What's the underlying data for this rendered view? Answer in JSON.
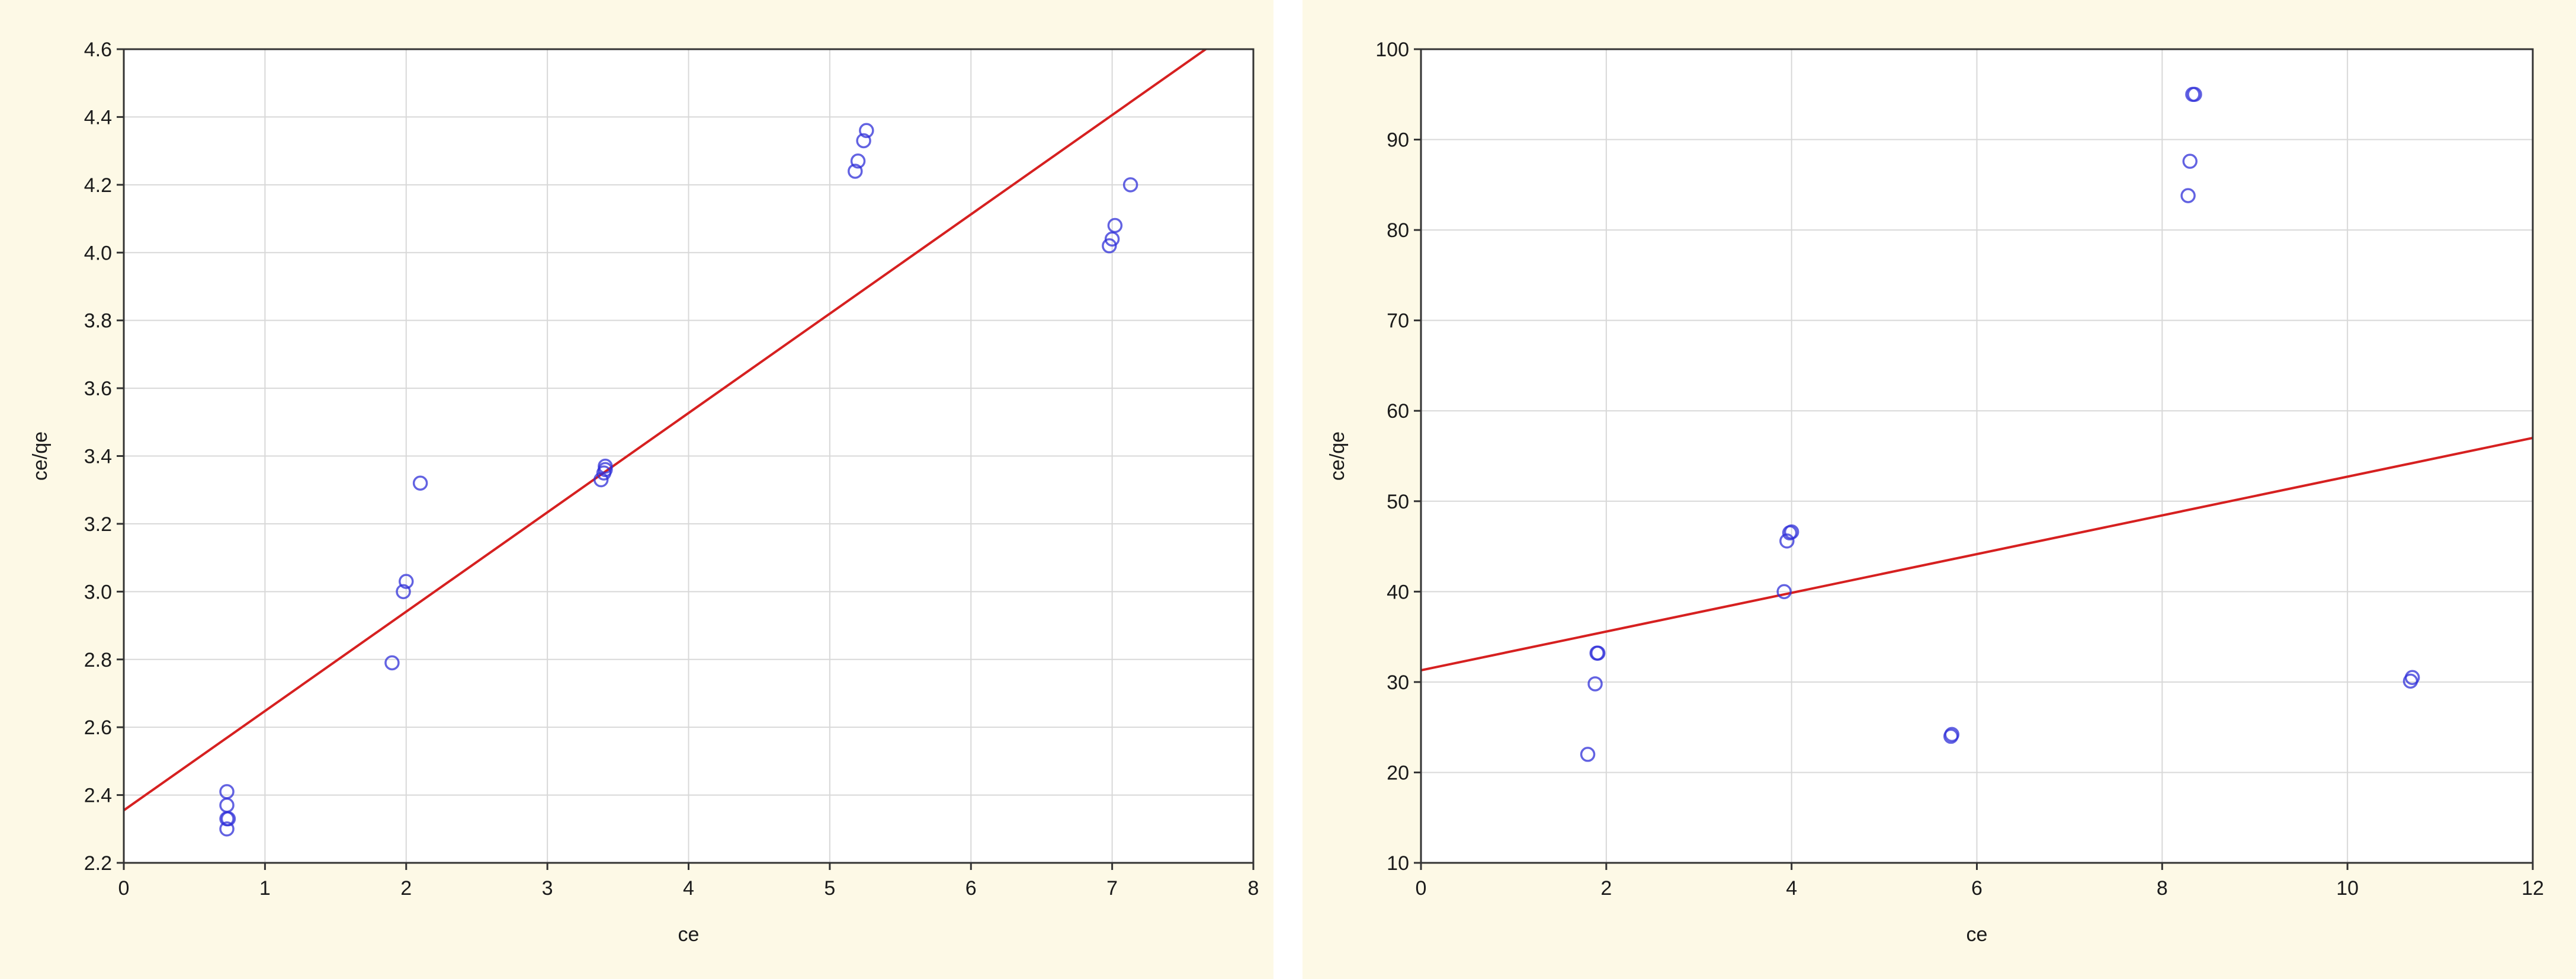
{
  "chart_data": [
    {
      "type": "scatter",
      "title": "",
      "xlabel": "ce",
      "ylabel": "ce/qe",
      "xlim": [
        0,
        8
      ],
      "ylim": [
        2.2,
        4.6
      ],
      "xticks": [
        "0",
        "1",
        "2",
        "3",
        "4",
        "5",
        "6",
        "7",
        "8"
      ],
      "yticks": [
        "2.2",
        "2.4",
        "2.6",
        "2.8",
        "3.0",
        "3.2",
        "3.4",
        "3.6",
        "3.8",
        "4.0",
        "4.2",
        "4.4",
        "4.6"
      ],
      "grid": true,
      "points": [
        [
          0.73,
          2.41
        ],
        [
          0.73,
          2.37
        ],
        [
          0.73,
          2.33
        ],
        [
          0.74,
          2.33
        ],
        [
          0.73,
          2.3
        ],
        [
          1.9,
          2.79
        ],
        [
          2.0,
          3.03
        ],
        [
          1.98,
          3.0
        ],
        [
          2.1,
          3.32
        ],
        [
          3.38,
          3.33
        ],
        [
          3.4,
          3.35
        ],
        [
          3.41,
          3.36
        ],
        [
          3.41,
          3.37
        ],
        [
          5.18,
          4.24
        ],
        [
          5.2,
          4.27
        ],
        [
          5.24,
          4.33
        ],
        [
          5.26,
          4.36
        ],
        [
          6.98,
          4.02
        ],
        [
          7.0,
          4.04
        ],
        [
          7.02,
          4.08
        ],
        [
          7.13,
          4.2
        ]
      ],
      "fit_line": {
        "x": [
          0,
          7.68
        ],
        "y": [
          2.355,
          4.605
        ]
      },
      "colors": {
        "points": "#2f2fd8",
        "line": "#d62020",
        "grid": "#d8d8d8",
        "background": "#fdf9e6"
      }
    },
    {
      "type": "scatter",
      "title": "",
      "xlabel": "ce",
      "ylabel": "ce/qe",
      "xlim": [
        0,
        12
      ],
      "ylim": [
        10,
        100
      ],
      "xticks": [
        "0",
        "2",
        "4",
        "6",
        "8",
        "10",
        "12"
      ],
      "yticks": [
        "10",
        "20",
        "30",
        "40",
        "50",
        "60",
        "70",
        "80",
        "90",
        "100"
      ],
      "grid": true,
      "points": [
        [
          1.8,
          22
        ],
        [
          1.88,
          29.8
        ],
        [
          1.9,
          33.2
        ],
        [
          1.91,
          33.2
        ],
        [
          3.92,
          40
        ],
        [
          3.95,
          45.6
        ],
        [
          3.98,
          46.5
        ],
        [
          4.0,
          46.6
        ],
        [
          5.72,
          24
        ],
        [
          5.73,
          24.2
        ],
        [
          8.28,
          83.8
        ],
        [
          8.3,
          87.6
        ],
        [
          8.33,
          95
        ],
        [
          8.35,
          95
        ],
        [
          10.68,
          30.1
        ],
        [
          10.7,
          30.5
        ]
      ],
      "fit_line": {
        "x": [
          0,
          12
        ],
        "y": [
          31.3,
          57.0
        ]
      },
      "colors": {
        "points": "#2f2fd8",
        "line": "#d62020",
        "grid": "#d8d8d8",
        "background": "#fdf9e6"
      }
    }
  ]
}
